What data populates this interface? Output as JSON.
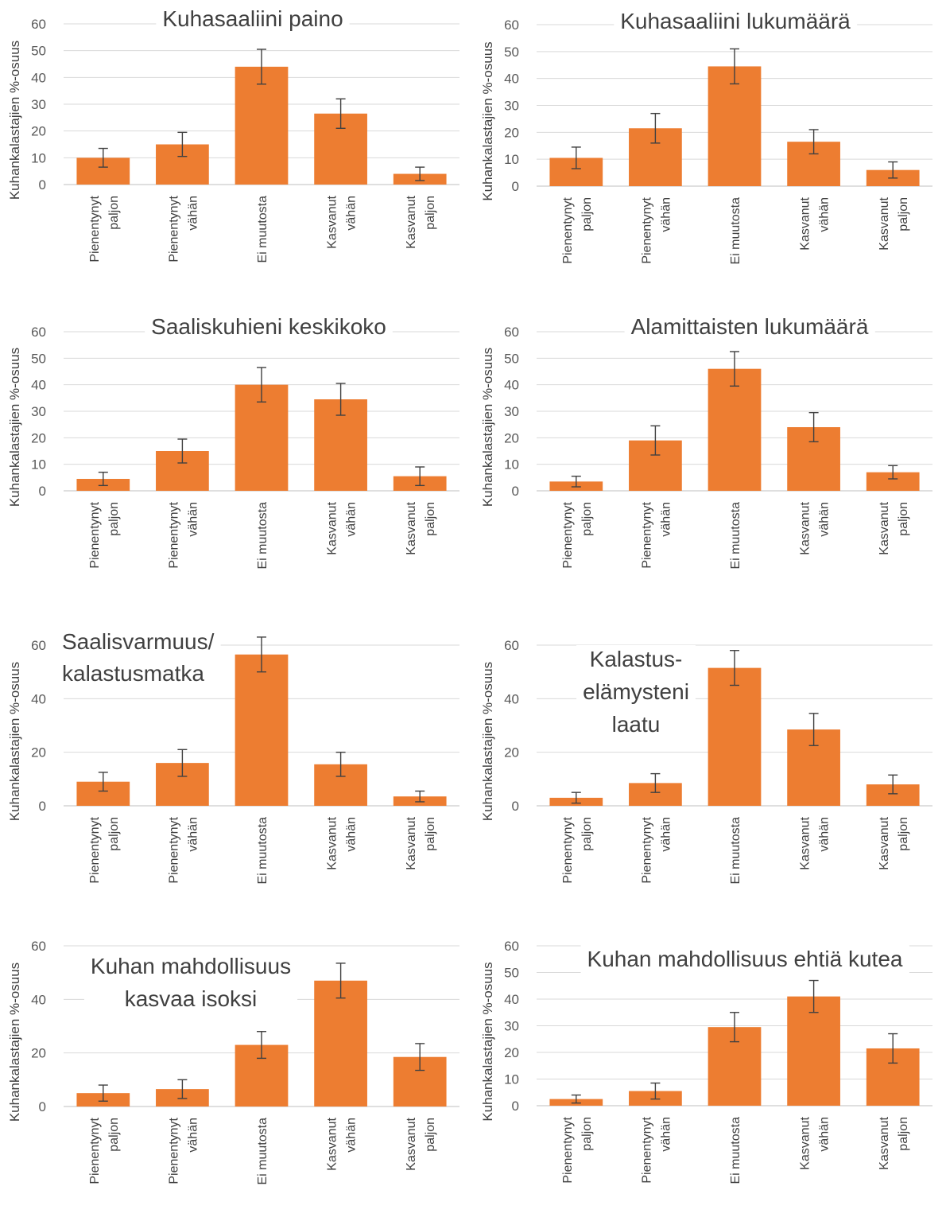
{
  "colors": {
    "bar": "#ED7D31",
    "grid": "#D9D9D9",
    "text": "#404040"
  },
  "chart_data": [
    {
      "type": "bar",
      "title_lines": [
        "Kuhasaaliini paino"
      ],
      "ylabel": "Kuhankalastajien %-osuus",
      "ylim": [
        0,
        60
      ],
      "yticks": [
        0,
        10,
        20,
        30,
        40,
        50,
        60
      ],
      "categories": [
        [
          "Pienentynyt",
          "paljon"
        ],
        [
          "Pienentynyt",
          "vähän"
        ],
        [
          "Ei muutosta"
        ],
        [
          "Kasvanut",
          "vähän"
        ],
        [
          "Kasvanut",
          "paljon"
        ]
      ],
      "values": [
        10,
        15,
        44,
        26.5,
        4
      ],
      "error": [
        3.5,
        4.5,
        6.5,
        5.5,
        2.5
      ]
    },
    {
      "type": "bar",
      "title_lines": [
        "Kuhasaaliini lukumäärä"
      ],
      "ylabel": "Kuhankalastajien %-osuus",
      "ylim": [
        0,
        60
      ],
      "yticks": [
        0,
        10,
        20,
        30,
        40,
        50,
        60
      ],
      "categories": [
        [
          "Pienentynyt",
          "paljon"
        ],
        [
          "Pienentynyt",
          "vähän"
        ],
        [
          "Ei muutosta"
        ],
        [
          "Kasvanut",
          "vähän"
        ],
        [
          "Kasvanut",
          "paljon"
        ]
      ],
      "values": [
        10.5,
        21.5,
        44.5,
        16.5,
        6
      ],
      "error": [
        4,
        5.5,
        6.5,
        4.5,
        3
      ]
    },
    {
      "type": "bar",
      "title_lines": [
        "Saaliskuhieni keskikoko"
      ],
      "ylabel": "Kuhankalastajien %-osuus",
      "ylim": [
        0,
        60
      ],
      "yticks": [
        0,
        10,
        20,
        30,
        40,
        50,
        60
      ],
      "categories": [
        [
          "Pienentynyt",
          "paljon"
        ],
        [
          "Pienentynyt",
          "vähän"
        ],
        [
          "Ei muutosta"
        ],
        [
          "Kasvanut",
          "vähän"
        ],
        [
          "Kasvanut",
          "paljon"
        ]
      ],
      "values": [
        4.5,
        15,
        40,
        34.5,
        5.5
      ],
      "error": [
        2.5,
        4.5,
        6.5,
        6,
        3.5
      ]
    },
    {
      "type": "bar",
      "title_lines": [
        "Alamittaisten lukumäärä"
      ],
      "ylabel": "Kuhankalastajien %-osuus",
      "ylim": [
        0,
        60
      ],
      "yticks": [
        0,
        10,
        20,
        30,
        40,
        50,
        60
      ],
      "categories": [
        [
          "Pienentynyt",
          "paljon"
        ],
        [
          "Pienentynyt",
          "vähän"
        ],
        [
          "Ei muutosta"
        ],
        [
          "Kasvanut",
          "vähän"
        ],
        [
          "Kasvanut",
          "paljon"
        ]
      ],
      "values": [
        3.5,
        19,
        46,
        24,
        7
      ],
      "error": [
        2,
        5.5,
        6.5,
        5.5,
        2.5
      ]
    },
    {
      "type": "bar",
      "title_lines": [
        "Saalisvarmuus/",
        "kalastusmatka"
      ],
      "ylabel": "Kuhankalastajien %-osuus",
      "ylim": [
        0,
        60
      ],
      "yticks": [
        0,
        20,
        40,
        60
      ],
      "categories": [
        [
          "Pienentynyt",
          "paljon"
        ],
        [
          "Pienentynyt",
          "vähän"
        ],
        [
          "Ei muutosta"
        ],
        [
          "Kasvanut",
          "vähän"
        ],
        [
          "Kasvanut",
          "paljon"
        ]
      ],
      "values": [
        9,
        16,
        56.5,
        15.5,
        3.5
      ],
      "error": [
        3.5,
        5,
        6.5,
        4.5,
        2
      ]
    },
    {
      "type": "bar",
      "title_lines": [
        "Kalastus-",
        "elämysteni",
        "laatu"
      ],
      "ylabel": "Kuhankalastajien %-osuus",
      "ylim": [
        0,
        60
      ],
      "yticks": [
        0,
        20,
        40,
        60
      ],
      "categories": [
        [
          "Pienentynyt",
          "paljon"
        ],
        [
          "Pienentynyt",
          "vähän"
        ],
        [
          "Ei muutosta"
        ],
        [
          "Kasvanut",
          "vähän"
        ],
        [
          "Kasvanut",
          "paljon"
        ]
      ],
      "values": [
        3,
        8.5,
        51.5,
        28.5,
        8
      ],
      "error": [
        2,
        3.5,
        6.5,
        6,
        3.5
      ]
    },
    {
      "type": "bar",
      "title_lines": [
        "Kuhan mahdollisuus",
        "kasvaa isoksi"
      ],
      "ylabel": "Kuhankalastajien %-osuus",
      "ylim": [
        0,
        60
      ],
      "yticks": [
        0,
        20,
        40,
        60
      ],
      "categories": [
        [
          "Pienentynyt",
          "paljon"
        ],
        [
          "Pienentynyt",
          "vähän"
        ],
        [
          "Ei muutosta"
        ],
        [
          "Kasvanut",
          "vähän"
        ],
        [
          "Kasvanut",
          "paljon"
        ]
      ],
      "values": [
        5,
        6.5,
        23,
        47,
        18.5
      ],
      "error": [
        3,
        3.5,
        5,
        6.5,
        5
      ]
    },
    {
      "type": "bar",
      "title_lines": [
        "Kuhan mahdollisuus ehtiä kutea"
      ],
      "ylabel": "Kuhankalastajien %-osuus",
      "ylim": [
        0,
        60
      ],
      "yticks": [
        0,
        10,
        20,
        30,
        40,
        50,
        60
      ],
      "categories": [
        [
          "Pienentynyt",
          "paljon"
        ],
        [
          "Pienentynyt",
          "vähän"
        ],
        [
          "Ei muutosta"
        ],
        [
          "Kasvanut",
          "vähän"
        ],
        [
          "Kasvanut",
          "paljon"
        ]
      ],
      "values": [
        2.5,
        5.5,
        29.5,
        41,
        21.5
      ],
      "error": [
        1.5,
        3,
        5.5,
        6,
        5.5
      ]
    }
  ]
}
